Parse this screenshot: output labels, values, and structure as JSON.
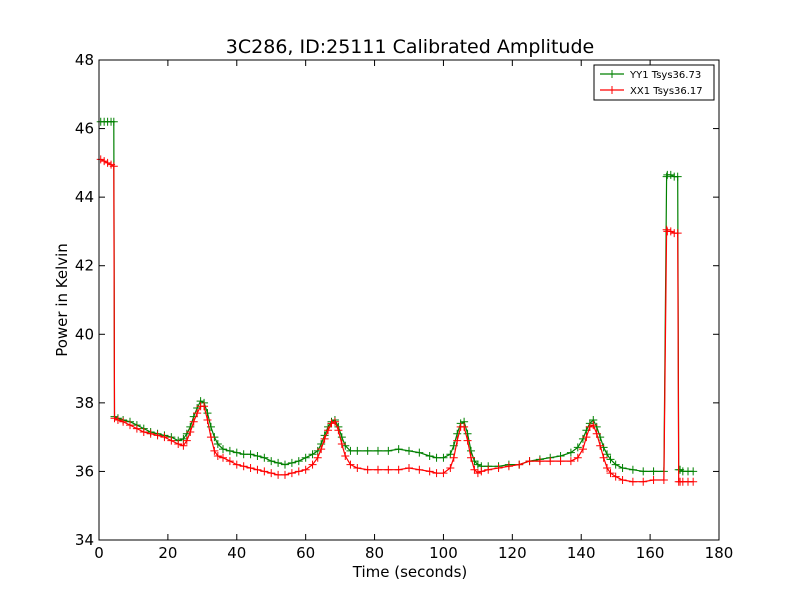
{
  "chart_data": {
    "type": "line",
    "title": "3C286, ID:25111 Calibrated Amplitude",
    "xlabel": "Time (seconds)",
    "ylabel": "Power in Kelvin",
    "xlim": [
      0,
      180
    ],
    "ylim": [
      34,
      48
    ],
    "xticks": [
      "0",
      "20",
      "40",
      "60",
      "80",
      "100",
      "120",
      "140",
      "160",
      "180"
    ],
    "yticks": [
      "34",
      "36",
      "38",
      "40",
      "42",
      "44",
      "46",
      "48"
    ],
    "grid": false,
    "legend_position": "top-right",
    "marker": "plus",
    "series": [
      {
        "name": "YY1 Tsys36.73",
        "color": "#008000",
        "x": [
          0.5,
          1.5,
          2.5,
          3.5,
          4.3,
          4.5,
          5.5,
          7,
          9,
          11,
          13,
          15,
          17,
          19,
          21,
          23,
          24.5,
          25.5,
          26.5,
          27.5,
          28.5,
          29.5,
          30.5,
          31.5,
          32.5,
          33.5,
          34.5,
          36,
          38,
          40,
          42,
          44,
          46,
          48,
          50,
          52,
          54,
          56,
          58,
          60,
          62,
          63.5,
          64.5,
          65.5,
          66.5,
          67.5,
          68.5,
          69.5,
          70.5,
          71.5,
          73,
          75,
          78,
          81,
          84,
          87,
          90,
          93,
          96,
          98,
          100,
          102,
          103,
          104,
          105,
          106,
          107,
          108,
          109,
          110,
          111,
          113,
          116,
          119,
          122,
          125,
          128,
          131,
          134,
          137,
          139,
          140.5,
          141.5,
          142.5,
          143.5,
          144.5,
          145.5,
          146.5,
          147.5,
          148.5,
          150,
          152,
          155,
          158,
          161,
          164,
          164.8,
          165,
          166,
          167,
          168,
          168.3,
          168.7,
          169.5,
          171,
          172.5
        ],
        "y": [
          46.2,
          46.2,
          46.2,
          46.2,
          46.2,
          37.6,
          37.55,
          37.5,
          37.45,
          37.35,
          37.25,
          37.15,
          37.1,
          37.05,
          37.0,
          36.9,
          36.95,
          37.1,
          37.3,
          37.6,
          37.85,
          38.05,
          38.0,
          37.7,
          37.3,
          37.0,
          36.8,
          36.65,
          36.6,
          36.55,
          36.5,
          36.5,
          36.45,
          36.4,
          36.3,
          36.25,
          36.2,
          36.25,
          36.3,
          36.4,
          36.5,
          36.6,
          36.8,
          37.05,
          37.3,
          37.45,
          37.5,
          37.3,
          37.0,
          36.75,
          36.6,
          36.6,
          36.6,
          36.6,
          36.6,
          36.65,
          36.6,
          36.55,
          36.45,
          36.4,
          36.4,
          36.5,
          36.75,
          37.1,
          37.4,
          37.45,
          37.1,
          36.6,
          36.3,
          36.2,
          36.15,
          36.15,
          36.15,
          36.2,
          36.2,
          36.3,
          36.35,
          36.4,
          36.45,
          36.55,
          36.7,
          36.95,
          37.2,
          37.4,
          37.5,
          37.3,
          37.0,
          36.7,
          36.5,
          36.35,
          36.2,
          36.1,
          36.05,
          36.0,
          36.0,
          36.0,
          44.6,
          44.65,
          44.65,
          44.6,
          44.6,
          36.05,
          36.05,
          36.0,
          36.0,
          36.0
        ]
      },
      {
        "name": "XX1 Tsys36.17",
        "color": "#ff0000",
        "x": [
          0.5,
          1.5,
          2.5,
          3.5,
          4.3,
          4.5,
          5.5,
          7,
          9,
          11,
          13,
          15,
          17,
          19,
          21,
          23,
          24.5,
          25.5,
          26.5,
          27.5,
          28.5,
          29.5,
          30.5,
          31.5,
          32.5,
          33.5,
          34.5,
          36,
          38,
          40,
          42,
          44,
          46,
          48,
          50,
          52,
          54,
          56,
          58,
          60,
          62,
          63.5,
          64.5,
          65.5,
          66.5,
          67.5,
          68.5,
          69.5,
          70.5,
          71.5,
          73,
          75,
          78,
          81,
          84,
          87,
          90,
          93,
          96,
          98,
          100,
          102,
          103,
          104,
          105,
          106,
          107,
          108,
          109,
          110,
          111,
          113,
          116,
          119,
          122,
          125,
          128,
          131,
          134,
          137,
          139,
          140.5,
          141.5,
          142.5,
          143.5,
          144.5,
          145.5,
          146.5,
          147.5,
          148.5,
          150,
          152,
          155,
          158,
          161,
          164,
          164.8,
          165,
          166,
          167,
          168,
          168.3,
          168.7,
          169.5,
          171,
          172.5
        ],
        "y": [
          45.1,
          45.05,
          45.0,
          44.95,
          44.9,
          37.55,
          37.5,
          37.45,
          37.35,
          37.25,
          37.15,
          37.1,
          37.05,
          37.0,
          36.9,
          36.8,
          36.75,
          36.9,
          37.15,
          37.45,
          37.7,
          37.9,
          37.9,
          37.5,
          37.0,
          36.6,
          36.45,
          36.4,
          36.3,
          36.2,
          36.15,
          36.1,
          36.05,
          36.0,
          35.95,
          35.9,
          35.9,
          35.95,
          36.0,
          36.05,
          36.2,
          36.4,
          36.65,
          36.95,
          37.2,
          37.4,
          37.45,
          37.2,
          36.8,
          36.45,
          36.2,
          36.1,
          36.05,
          36.05,
          36.05,
          36.05,
          36.1,
          36.05,
          36.0,
          35.95,
          35.95,
          36.1,
          36.4,
          36.9,
          37.3,
          37.3,
          36.9,
          36.4,
          36.05,
          35.95,
          36.0,
          36.05,
          36.1,
          36.15,
          36.2,
          36.3,
          36.3,
          36.3,
          36.3,
          36.3,
          36.4,
          36.65,
          37.0,
          37.3,
          37.35,
          37.1,
          36.75,
          36.4,
          36.1,
          35.95,
          35.85,
          35.75,
          35.7,
          35.7,
          35.75,
          35.75,
          43.05,
          43.0,
          43.0,
          42.95,
          42.95,
          35.7,
          35.7,
          35.7,
          35.7,
          35.7
        ]
      }
    ]
  }
}
